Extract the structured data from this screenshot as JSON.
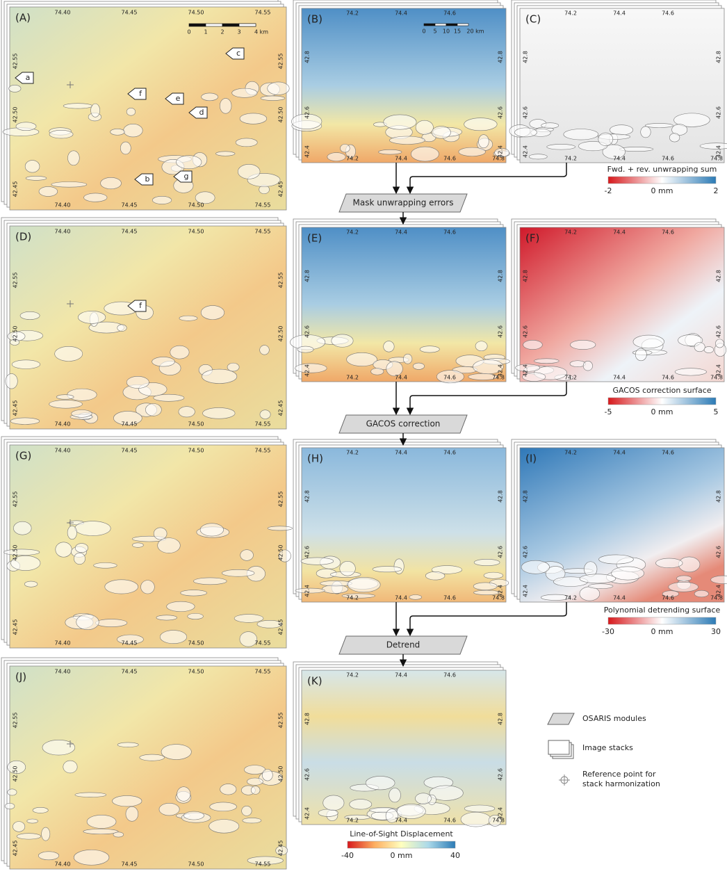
{
  "large_panels": [
    {
      "label": "(A)",
      "markers": [
        "a",
        "b",
        "c",
        "d",
        "e",
        "f",
        "g"
      ]
    },
    {
      "label": "(D)",
      "markers": [
        "f"
      ]
    },
    {
      "label": "(G)"
    },
    {
      "label": "(J)"
    }
  ],
  "large_ticks": {
    "lon": [
      "74.40",
      "74.45",
      "74.50",
      "74.55"
    ],
    "lat": [
      "42.55",
      "42.50",
      "42.45"
    ]
  },
  "scale_bar_large": [
    "0",
    "1",
    "2",
    "3",
    "4 km"
  ],
  "small_panels": [
    {
      "label": "(B)"
    },
    {
      "label": "(C)"
    },
    {
      "label": "(E)"
    },
    {
      "label": "(F)"
    },
    {
      "label": "(H)"
    },
    {
      "label": "(I)"
    },
    {
      "label": "(K)"
    }
  ],
  "small_ticks": {
    "lon": [
      "74.2",
      "74.4",
      "74.6",
      "74.8"
    ],
    "lat": [
      "42.8",
      "42.6",
      "42.4"
    ]
  },
  "scale_bar_small": [
    "0",
    "5",
    "10",
    "15",
    "20 km"
  ],
  "colorbars": [
    {
      "title": "Fwd. + rev. unwrapping sum",
      "min": "-2",
      "mid": "0 mm",
      "max": "2"
    },
    {
      "title": "GACOS correction surface",
      "min": "-5",
      "mid": "0 mm",
      "max": "5"
    },
    {
      "title": "Polynomial detrending surface",
      "min": "-30",
      "mid": "0 mm",
      "max": "30"
    },
    {
      "title": "Line-of-Sight Displacement",
      "min": "-40",
      "mid": "0 mm",
      "max": "40"
    }
  ],
  "modules": [
    "Mask unwrapping errors",
    "GACOS correction",
    "Detrend"
  ],
  "legend": {
    "modules": "OSARIS modules",
    "stacks": "Image stacks",
    "reference": [
      "Reference point for",
      "stack harmonization"
    ]
  }
}
